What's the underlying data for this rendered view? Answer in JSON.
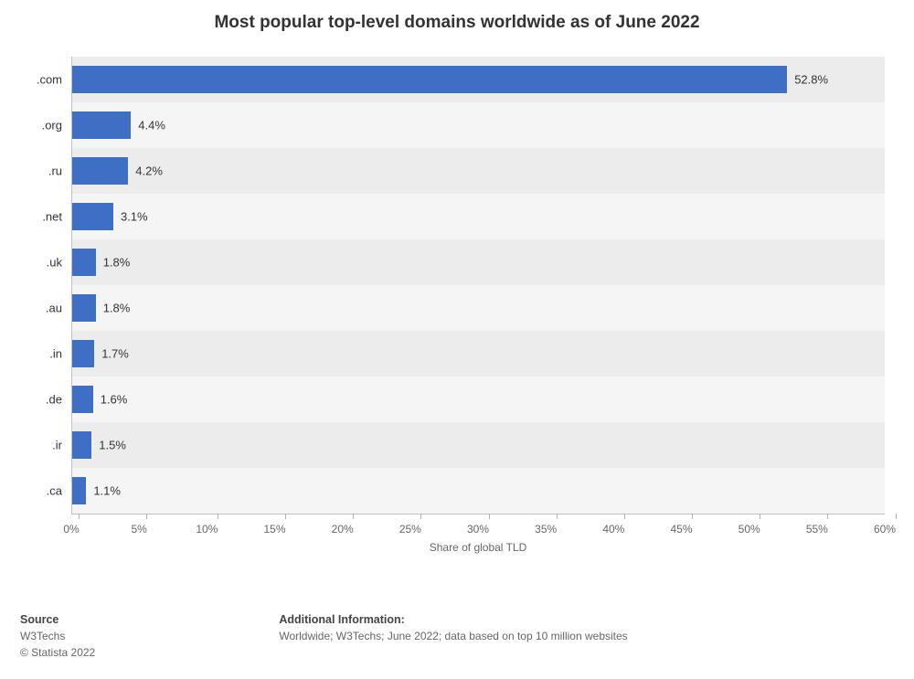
{
  "title": {
    "text": "Most popular top-level domains worldwide as of June 2022",
    "fontsize": 19,
    "color": "#333333"
  },
  "chart": {
    "type": "bar-horizontal",
    "categories": [
      ".com",
      ".org",
      ".ru",
      ".net",
      ".uk",
      ".au",
      ".in",
      ".de",
      ".ir",
      ".ca"
    ],
    "values": [
      52.8,
      4.4,
      4.2,
      3.1,
      1.8,
      1.8,
      1.7,
      1.6,
      1.5,
      1.1
    ],
    "value_labels": [
      "52.8%",
      "4.4%",
      "4.2%",
      "3.1%",
      "1.8%",
      "1.8%",
      "1.7%",
      "1.6%",
      "1.5%",
      "1.1%"
    ],
    "bar_color": "#3f6fc4",
    "row_bg_even": "#ececec",
    "row_bg_odd": "#f5f5f5",
    "xlim": [
      0,
      60
    ],
    "xtick_step": 5,
    "xtick_labels": [
      "0%",
      "5%",
      "10%",
      "15%",
      "20%",
      "25%",
      "30%",
      "35%",
      "40%",
      "45%",
      "50%",
      "55%",
      "60%"
    ],
    "x_title": "Share of global TLD",
    "category_fontsize": 13,
    "value_label_fontsize": 13,
    "tick_label_fontsize": 12,
    "axis_color": "#c0c0c0",
    "background_color": "#ffffff"
  },
  "footer": {
    "source_heading": "Source",
    "source_name": "W3Techs",
    "copyright": "© Statista 2022",
    "info_heading": "Additional Information:",
    "info_text": "Worldwide; W3Techs; June 2022; data based on top 10 million websites"
  }
}
